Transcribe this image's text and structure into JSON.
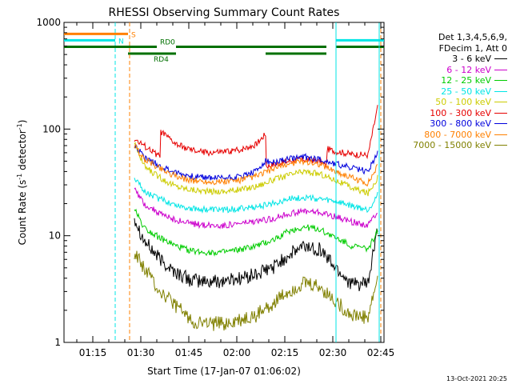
{
  "chart_data": {
    "type": "line",
    "title": "RHESSI Observing Summary Count Rates",
    "xlabel": "Start Time (17-Jan-07 01:06:02)",
    "ylabel": "Count Rate (s",
    "ylabel_sup1": "-1",
    "ylabel_mid": " detector",
    "ylabel_sup2": "-1",
    "ylabel_end": ")",
    "x_ticks": [
      "01:15",
      "01:30",
      "01:45",
      "02:00",
      "02:15",
      "02:30",
      "02:45"
    ],
    "y_ticks": [
      "1",
      "10",
      "100",
      "1000"
    ],
    "xlim_minutes_after_start": [
      0,
      100
    ],
    "ylim": [
      1,
      1000
    ],
    "y_scale": "log",
    "legend_title": [
      "Det 1,3,4,5,6,9,",
      "FDecim 1, Att 0"
    ],
    "legend_position": "right",
    "series": [
      {
        "name": "3 - 6 keV",
        "color": "#000000",
        "x": [
          22,
          25,
          30,
          35,
          40,
          45,
          50,
          55,
          60,
          65,
          70,
          75,
          80,
          85,
          90,
          95,
          98
        ],
        "values": [
          15,
          9,
          6,
          4.5,
          3.8,
          3.7,
          3.8,
          4,
          4.3,
          5,
          6.5,
          8,
          7.5,
          5,
          3.5,
          3.5,
          12
        ]
      },
      {
        "name": "6 - 12 keV",
        "color": "#cc00cc",
        "x": [
          22,
          25,
          30,
          35,
          40,
          45,
          50,
          55,
          60,
          65,
          70,
          75,
          80,
          85,
          90,
          95,
          98
        ],
        "values": [
          28,
          20,
          16,
          14,
          13,
          12.5,
          12.5,
          13,
          13.5,
          14.5,
          16,
          17,
          16.5,
          15,
          13.5,
          12.5,
          17
        ]
      },
      {
        "name": "12 - 25 keV",
        "color": "#00cc00",
        "x": [
          22,
          25,
          30,
          35,
          40,
          45,
          50,
          55,
          60,
          65,
          70,
          75,
          80,
          85,
          90,
          95,
          98
        ],
        "values": [
          18,
          12,
          9.5,
          8,
          7.2,
          7,
          7,
          7.4,
          8,
          9,
          11,
          12,
          11.5,
          9.5,
          8,
          7.5,
          11
        ]
      },
      {
        "name": "25 - 50 keV",
        "color": "#00e5e5",
        "x": [
          22,
          25,
          30,
          35,
          40,
          45,
          50,
          55,
          60,
          65,
          70,
          75,
          80,
          85,
          90,
          95,
          98
        ],
        "values": [
          36,
          26,
          22,
          19.5,
          18,
          17.5,
          17.5,
          18,
          18.5,
          20,
          22,
          23,
          22,
          21,
          19,
          17.5,
          24
        ]
      },
      {
        "name": "50 - 100 keV",
        "color": "#cccc00",
        "x": [
          22,
          25,
          30,
          35,
          40,
          45,
          50,
          55,
          60,
          65,
          70,
          75,
          80,
          85,
          90,
          95,
          98
        ],
        "values": [
          75,
          45,
          35,
          29,
          27,
          26,
          26,
          27,
          29,
          33,
          37,
          40,
          38,
          33,
          28,
          25,
          35
        ]
      },
      {
        "name": "100 - 300 keV",
        "color": "#e60000",
        "x": [
          22,
          25,
          30,
          30.2,
          35,
          40,
          45,
          50,
          55,
          60,
          63,
          63.2,
          65,
          70,
          75,
          80,
          82,
          82.2,
          85,
          90,
          95,
          98
        ],
        "values": [
          80,
          70,
          55,
          95,
          72,
          63,
          60,
          61,
          64,
          72,
          90,
          45,
          46,
          50,
          52,
          50,
          45,
          65,
          62,
          58,
          57,
          160
        ]
      },
      {
        "name": "300 - 800 keV",
        "color": "#0000dd",
        "x": [
          22,
          25,
          30,
          35,
          40,
          45,
          50,
          55,
          60,
          63,
          65,
          70,
          75,
          80,
          85,
          90,
          95,
          98
        ],
        "values": [
          72,
          55,
          45,
          39,
          36,
          35,
          35,
          36,
          40,
          50,
          48,
          52,
          55,
          52,
          47,
          43,
          40,
          60
        ]
      },
      {
        "name": "800 - 7000 keV",
        "color": "#ff8000",
        "x": [
          22,
          25,
          30,
          35,
          40,
          45,
          50,
          55,
          60,
          65,
          70,
          75,
          80,
          85,
          90,
          95,
          98
        ],
        "values": [
          70,
          52,
          43,
          36,
          33,
          32,
          32,
          33,
          36,
          42,
          47,
          50,
          47,
          40,
          35,
          31,
          45
        ]
      },
      {
        "name": "7000 - 15000 keV",
        "color": "#808000",
        "x": [
          22,
          25,
          30,
          35,
          40,
          45,
          50,
          55,
          60,
          65,
          70,
          75,
          80,
          85,
          90,
          95,
          98
        ],
        "values": [
          7,
          5,
          3,
          2.2,
          1.6,
          1.5,
          1.5,
          1.6,
          1.8,
          2.3,
          3,
          3.6,
          3.3,
          2.4,
          1.8,
          1.7,
          4
        ]
      }
    ],
    "state_bars": [
      {
        "label": "S",
        "color": "#ff8000",
        "segments": [
          [
            0,
            20
          ]
        ],
        "y": 780
      },
      {
        "label": "N",
        "color": "#00e5e5",
        "segments": [
          [
            0,
            16
          ],
          [
            85,
            100
          ]
        ],
        "y": 680
      },
      {
        "label": "RD0",
        "color": "#007000",
        "segments": [
          [
            0,
            29
          ],
          [
            35,
            63
          ],
          [
            63,
            82
          ],
          [
            85,
            100
          ]
        ],
        "y": 590
      },
      {
        "label": "RD4",
        "color": "#007000",
        "segments": [
          [
            20,
            35
          ],
          [
            63,
            82
          ]
        ],
        "y": 510
      }
    ],
    "vlines": [
      {
        "x": 16,
        "color": "#00e5e5",
        "style": "dashed"
      },
      {
        "x": 20.5,
        "color": "#ff8000",
        "style": "dashed"
      },
      {
        "x": 85,
        "color": "#00e5e5",
        "style": "solid"
      },
      {
        "x": 99,
        "color": "#ff8000",
        "style": "dashed"
      },
      {
        "x": 98.5,
        "color": "#00e5e5",
        "style": "solid"
      }
    ],
    "grid": false
  },
  "timestamp": "13-Oct-2021 20:25"
}
